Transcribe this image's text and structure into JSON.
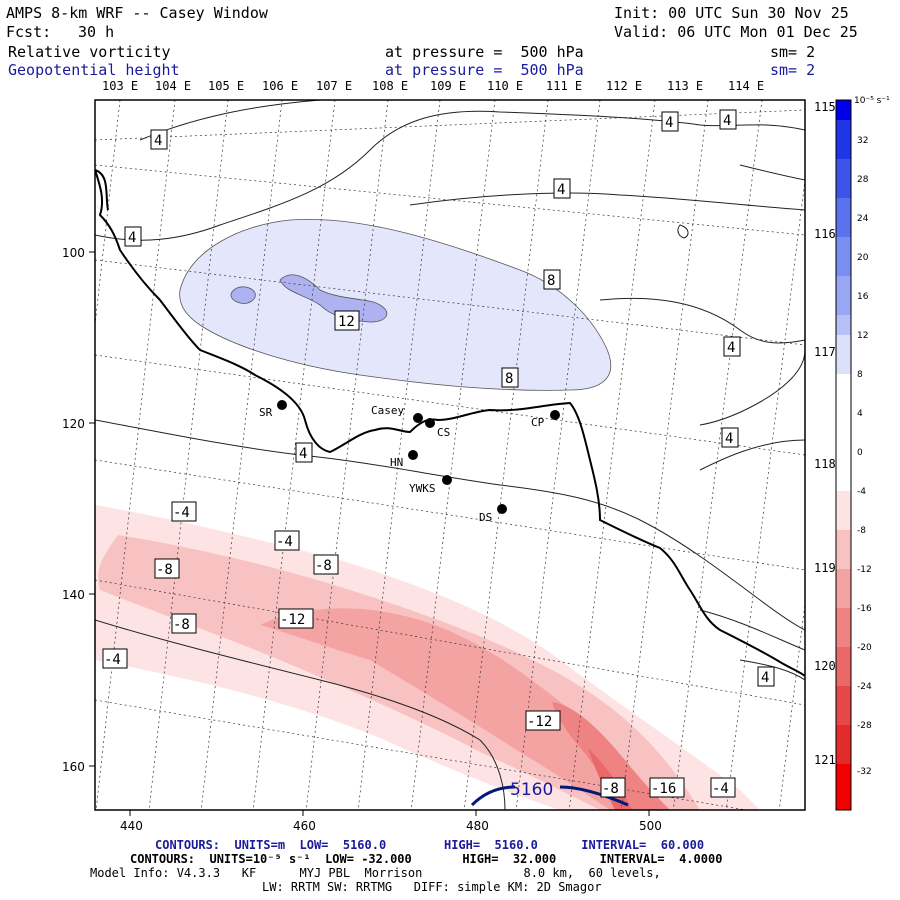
{
  "header": {
    "title": "AMPS 8-km WRF -- Casey Window",
    "init": "Init: 00 UTC Sun 30 Nov 25",
    "fcst_label": "Fcst:",
    "fcst_value": "30 h",
    "valid": "Valid: 06 UTC Mon 01 Dec 25",
    "field1": "Relative vorticity",
    "field1_level": "at pressure =  500 hPa",
    "field1_sm": "sm= 2",
    "field2": "Geopotential height",
    "field2_level": "at pressure =  500 hPa",
    "field2_sm": "sm= 2"
  },
  "longitude_labels": [
    "103 E",
    "104 E",
    "105 E",
    "106 E",
    "107 E",
    "108 E",
    "109 E",
    "110 E",
    "111 E",
    "112 E",
    "113 E",
    "114 E"
  ],
  "right_longitude_labels": [
    "115 E",
    "116 E",
    "117 E",
    "118 E",
    "119 E",
    "120 E",
    "121 E"
  ],
  "x_axis_ticks": [
    "440",
    "460",
    "480",
    "500"
  ],
  "y_axis_ticks": [
    "100",
    "120",
    "140",
    "160"
  ],
  "stations": [
    {
      "name": "SR"
    },
    {
      "name": "Casey"
    },
    {
      "name": "CS"
    },
    {
      "name": "HN"
    },
    {
      "name": "YWKS"
    },
    {
      "name": "CP"
    },
    {
      "name": "DS"
    }
  ],
  "contour_labels": {
    "positive": [
      "4",
      "4",
      "4",
      "4",
      "4",
      "4",
      "4",
      "4",
      "8",
      "8",
      "12"
    ],
    "negative": [
      "-4",
      "-4",
      "-4",
      "-4",
      "-8",
      "-8",
      "-8",
      "-12",
      "-12",
      "-8",
      "-16",
      "-4"
    ],
    "height": "5160"
  },
  "colorbar": {
    "unit": "10⁻⁵ s⁻¹",
    "ticks": [
      "32",
      "28",
      "24",
      "20",
      "16",
      "12",
      "8",
      "4",
      "0",
      "-4",
      "-8",
      "-12",
      "-16",
      "-20",
      "-24",
      "-28",
      "-32"
    ]
  },
  "footer": {
    "line1": "CONTOURS:  UNITS=m  LOW=  5160.0        HIGH=  5160.0      INTERVAL=  60.000",
    "line2": "CONTOURS:  UNITS=10⁻⁵ s⁻¹  LOW= -32.000       HIGH=  32.000      INTERVAL=  4.0000",
    "line3": "Model Info: V4.3.3   KF      MYJ PBL  Morrison              8.0 km,  60 levels,",
    "line4": "LW: RRTM SW: RRTMG   DIFF: simple KM: 2D Smagor"
  },
  "colors": {
    "pos_light": "#e4e6fb",
    "pos_mid": "#aeb2f1",
    "neg_1": "#fde3e3",
    "neg_2": "#f8c2c2",
    "neg_3": "#f4a3a3",
    "neg_4": "#ef8383",
    "height_contour": "#001a7a"
  }
}
